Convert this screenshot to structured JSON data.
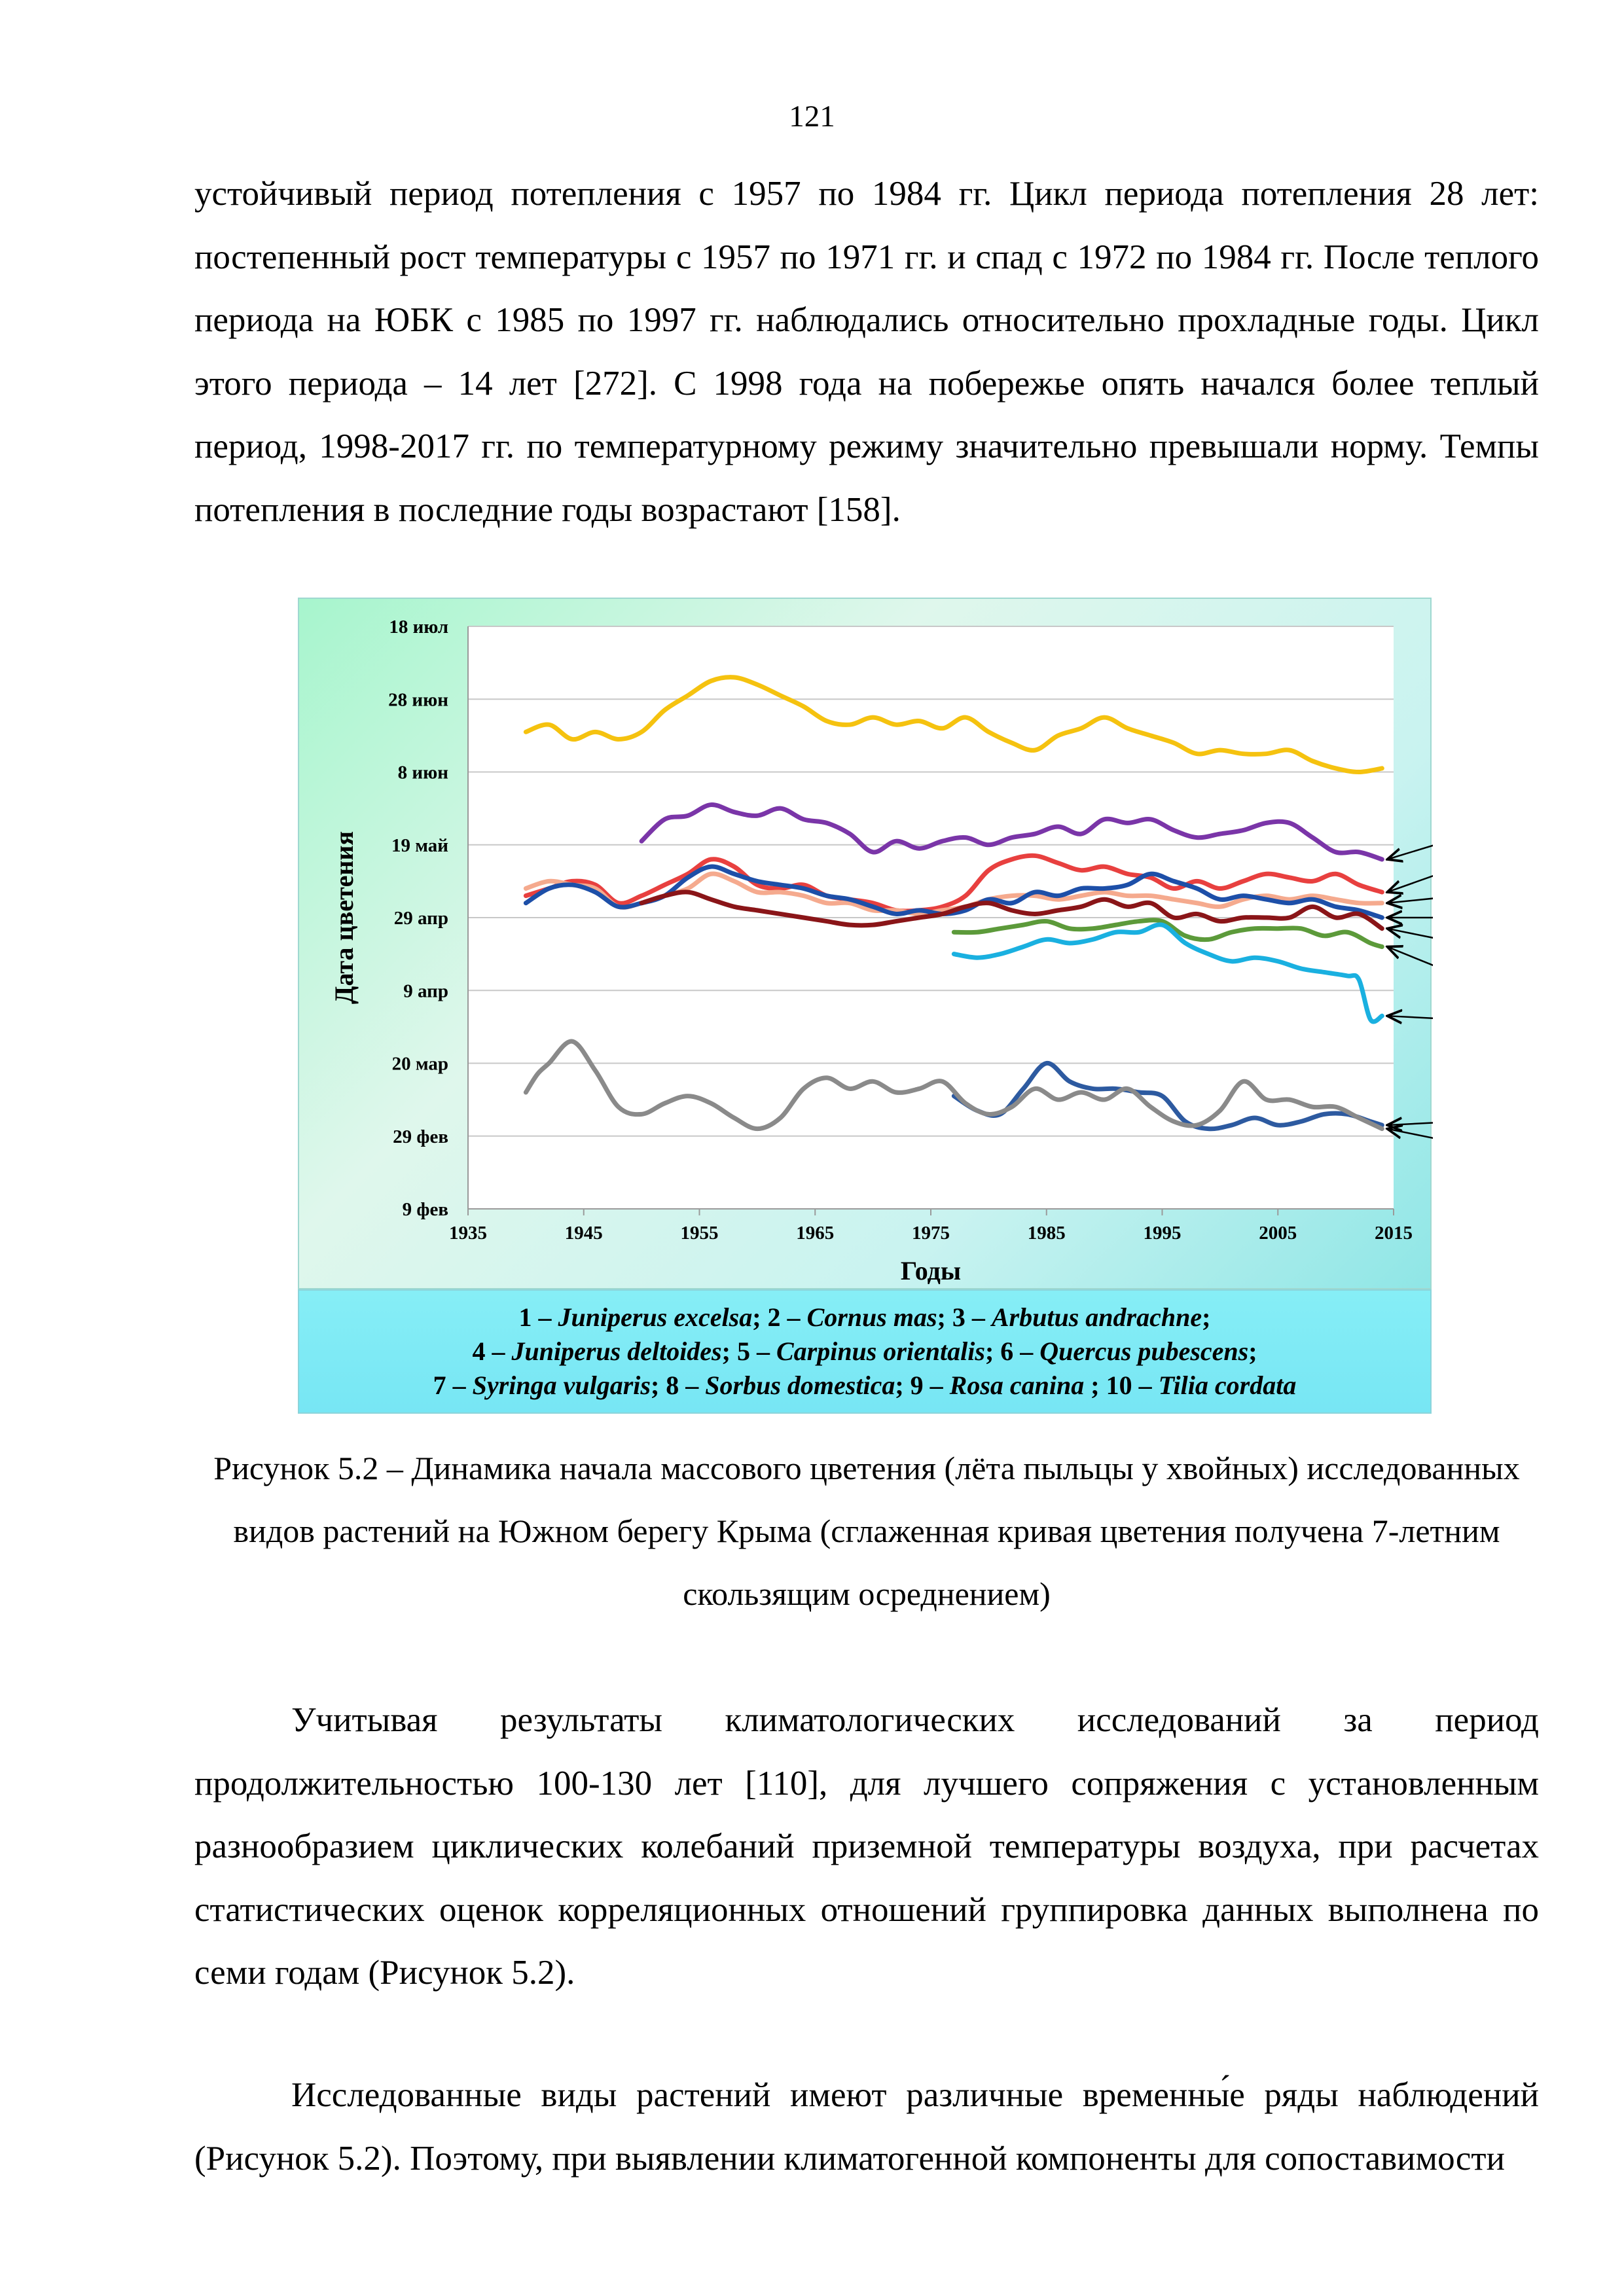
{
  "page_number": "121",
  "paragraph_top": "устойчивый период потепления с 1957 по 1984 гг. Цикл периода потепления 28 лет: постепенный рост температуры с 1957 по 1971 гг. и спад с 1972 по 1984 гг. После теплого периода на ЮБК с 1985 по 1997 гг. наблюдались относительно прохладные годы. Цикл этого периода – 14 лет [272]. С 1998 года на побережье опять начался более теплый период, 1998-2017 гг. по температурному режиму значительно превышали норму. Темпы потепления в последние годы возрастают [158].",
  "figure_caption": "Рисунок 5.2 – Динамика начала массового цветения (лёта пыльцы у хвойных) исследованных видов растений на Южном берегу Крыма (сглаженная кривая цветения получена 7-летним скользящим осреднением)",
  "paragraph_2": "Учитывая результаты климатологических исследований за период продолжительностью 100-130 лет [110], для лучшего сопряжения с установленным разнообразием циклических колебаний приземной температуры воздуха, при расчетах статистических оценок корреляционных отношений группировка данных выполнена по семи годам (Рисунок 5.2).",
  "paragraph_3": "Исследованные виды растений имеют различные временны́е ряды наблюдений (Рисунок 5.2). Поэтому, при выявлении климатогенной компоненты для сопоставимости",
  "legend": {
    "line1": [
      {
        "num": "1 – ",
        "name": "Juniperus excelsa"
      },
      {
        "num": "; 2 – ",
        "name": "Cornus mas"
      },
      {
        "num": "; 3 – ",
        "name": "Arbutus andrachne"
      },
      {
        "num": ";",
        "name": ""
      }
    ],
    "line2": [
      {
        "num": "4 – ",
        "name": "Juniperus deltoides"
      },
      {
        "num": "; 5 – ",
        "name": "Carpinus orientalis"
      },
      {
        "num": "; 6 – ",
        "name": "Quercus pubescens"
      },
      {
        "num": ";",
        "name": ""
      }
    ],
    "line3": [
      {
        "num": "7 – ",
        "name": "Syringa vulgaris"
      },
      {
        "num": "; 8 – ",
        "name": "Sorbus domestica"
      },
      {
        "num": "; 9 – ",
        "name": "Rosa canina"
      },
      {
        "num": " ; 10 – ",
        "name": "Tilia cordata"
      }
    ]
  },
  "chart_data": {
    "type": "line",
    "xlabel": "Годы",
    "ylabel": "Дата цветения",
    "xlim": [
      1935,
      2015
    ],
    "x_ticks": [
      1935,
      1945,
      1955,
      1965,
      1975,
      1985,
      1995,
      2005,
      2015
    ],
    "y_ticks": [
      "18 июл",
      "28 июн",
      "8 июн",
      "19 май",
      "29 апр",
      "9 апр",
      "20 мар",
      "29 фев",
      "9 фев"
    ],
    "y_unit": "days after 9 фев",
    "ylim": [
      0,
      160
    ],
    "y_tick_values": [
      160,
      140,
      120,
      100,
      80,
      60,
      40,
      20,
      0
    ],
    "grid": true,
    "series": [
      {
        "label": "10",
        "color": "#f5c20f",
        "x": [
          1940,
          1942,
          1944,
          1946,
          1948,
          1950,
          1952,
          1954,
          1956,
          1958,
          1960,
          1962,
          1964,
          1966,
          1968,
          1970,
          1972,
          1974,
          1976,
          1978,
          1980,
          1982,
          1984,
          1986,
          1988,
          1990,
          1992,
          1994,
          1996,
          1998,
          2000,
          2002,
          2004,
          2006,
          2008,
          2010,
          2012,
          2014
        ],
        "values": [
          131,
          133,
          129,
          131,
          129,
          131,
          137,
          141,
          145,
          146,
          144,
          141,
          138,
          134,
          133,
          135,
          133,
          134,
          132,
          135,
          131,
          128,
          126,
          130,
          132,
          135,
          132,
          130,
          128,
          125,
          126,
          125,
          125,
          126,
          123,
          121,
          120,
          121
        ]
      },
      {
        "label": "9",
        "color": "#7a35a8",
        "x": [
          1950,
          1952,
          1954,
          1956,
          1958,
          1960,
          1962,
          1964,
          1966,
          1968,
          1970,
          1972,
          1974,
          1976,
          1978,
          1980,
          1982,
          1984,
          1986,
          1988,
          1990,
          1992,
          1994,
          1996,
          1998,
          2000,
          2002,
          2004,
          2006,
          2008,
          2010,
          2012,
          2014
        ],
        "values": [
          101,
          107,
          108,
          111,
          109,
          108,
          110,
          107,
          106,
          103,
          98,
          101,
          99,
          101,
          102,
          100,
          102,
          103,
          105,
          103,
          107,
          106,
          107,
          104,
          102,
          103,
          104,
          106,
          106,
          102,
          98,
          98,
          96
        ]
      },
      {
        "label": "8",
        "color": "#e8403f",
        "x": [
          1940,
          1942,
          1944,
          1946,
          1948,
          1950,
          1952,
          1954,
          1956,
          1958,
          1960,
          1962,
          1964,
          1966,
          1968,
          1970,
          1972,
          1974,
          1976,
          1978,
          1980,
          1982,
          1984,
          1986,
          1988,
          1990,
          1992,
          1994,
          1996,
          1998,
          2000,
          2002,
          2004,
          2006,
          2008,
          2010,
          2012,
          2014
        ],
        "values": [
          86,
          88,
          90,
          89,
          84,
          86,
          89,
          92,
          96,
          94,
          89,
          88,
          89,
          86,
          85,
          84,
          82,
          82,
          83,
          86,
          93,
          96,
          97,
          95,
          93,
          94,
          92,
          91,
          88,
          90,
          88,
          90,
          92,
          91,
          90,
          92,
          89,
          87
        ]
      },
      {
        "label": "7",
        "color": "#f5aa8e",
        "x": [
          1940,
          1942,
          1944,
          1946,
          1948,
          1950,
          1952,
          1954,
          1956,
          1958,
          1960,
          1962,
          1964,
          1966,
          1968,
          1970,
          1972,
          1974,
          1976,
          1978,
          1980,
          1982,
          1984,
          1986,
          1988,
          1990,
          1992,
          1994,
          1996,
          1998,
          2000,
          2002,
          2004,
          2006,
          2008,
          2010,
          2012,
          2014
        ],
        "values": [
          88,
          90,
          89,
          88,
          83,
          84,
          86,
          88,
          92,
          90,
          87,
          87,
          86,
          84,
          84,
          82,
          82,
          81,
          82,
          83,
          85,
          86,
          86,
          85,
          86,
          87,
          86,
          86,
          85,
          84,
          83,
          85,
          86,
          85,
          86,
          85,
          84,
          84
        ]
      },
      {
        "label": "6",
        "color": "#1d4fa8",
        "x": [
          1940,
          1942,
          1944,
          1946,
          1948,
          1950,
          1952,
          1954,
          1956,
          1958,
          1960,
          1962,
          1964,
          1966,
          1968,
          1970,
          1972,
          1974,
          1976,
          1978,
          1980,
          1982,
          1984,
          1986,
          1988,
          1990,
          1992,
          1994,
          1996,
          1998,
          2000,
          2002,
          2004,
          2006,
          2008,
          2010,
          2012,
          2014
        ],
        "values": [
          84,
          88,
          89,
          87,
          83,
          84,
          86,
          91,
          94,
          92,
          90,
          89,
          88,
          86,
          85,
          83,
          81,
          82,
          81,
          82,
          85,
          84,
          87,
          86,
          88,
          88,
          89,
          92,
          90,
          88,
          85,
          86,
          85,
          84,
          85,
          83,
          82,
          80
        ]
      },
      {
        "label": "5",
        "color": "#8a1518",
        "x": [
          1950,
          1952,
          1954,
          1956,
          1958,
          1960,
          1962,
          1964,
          1966,
          1968,
          1970,
          1972,
          1974,
          1976,
          1978,
          1980,
          1982,
          1984,
          1986,
          1988,
          1990,
          1992,
          1994,
          1996,
          1998,
          2000,
          2002,
          2004,
          2006,
          2008,
          2010,
          2012,
          2014
        ],
        "values": [
          84,
          86,
          87,
          85,
          83,
          82,
          81,
          80,
          79,
          78,
          78,
          79,
          80,
          81,
          83,
          84,
          82,
          81,
          82,
          83,
          85,
          83,
          84,
          80,
          81,
          79,
          80,
          80,
          80,
          83,
          80,
          81,
          77
        ]
      },
      {
        "label": "4",
        "color": "#5c9a3a",
        "x": [
          1977,
          1979,
          1981,
          1983,
          1985,
          1987,
          1989,
          1991,
          1993,
          1995,
          1997,
          1999,
          2001,
          2003,
          2005,
          2007,
          2009,
          2011,
          2013,
          2014
        ],
        "values": [
          76,
          76,
          77,
          78,
          79,
          77,
          77,
          78,
          79,
          79,
          75,
          74,
          76,
          77,
          77,
          77,
          75,
          76,
          73,
          72
        ]
      },
      {
        "label": "3",
        "color": "#1ab0e0",
        "x": [
          1977,
          1979,
          1981,
          1983,
          1985,
          1987,
          1989,
          1991,
          1993,
          1995,
          1997,
          1999,
          2001,
          2003,
          2005,
          2007,
          2009,
          2011,
          2012,
          2013,
          2014
        ],
        "values": [
          70,
          69,
          70,
          72,
          74,
          73,
          74,
          76,
          76,
          78,
          73,
          70,
          68,
          69,
          68,
          66,
          65,
          64,
          63,
          52,
          53
        ]
      },
      {
        "label": "2",
        "color": "#2d5aa0",
        "x": [
          1977,
          1979,
          1981,
          1983,
          1985,
          1987,
          1989,
          1991,
          1993,
          1995,
          1997,
          1999,
          2001,
          2003,
          2005,
          2007,
          2009,
          2011,
          2013,
          2014
        ],
        "values": [
          31,
          27,
          26,
          33,
          40,
          35,
          33,
          33,
          32,
          31,
          24,
          22,
          23,
          25,
          23,
          24,
          26,
          26,
          24,
          23
        ]
      },
      {
        "label": "1",
        "color": "#8a8a8a",
        "x": [
          1940,
          1941,
          1942,
          1944,
          1946,
          1948,
          1950,
          1952,
          1954,
          1956,
          1958,
          1960,
          1962,
          1964,
          1966,
          1968,
          1970,
          1972,
          1974,
          1976,
          1978,
          1980,
          1982,
          1984,
          1986,
          1988,
          1990,
          1992,
          1994,
          1996,
          1998,
          2000,
          2002,
          2004,
          2006,
          2008,
          2010,
          2012,
          2014
        ],
        "values": [
          32,
          37,
          40,
          46,
          38,
          28,
          26,
          29,
          31,
          29,
          25,
          22,
          25,
          33,
          36,
          33,
          35,
          32,
          33,
          35,
          29,
          26,
          28,
          33,
          30,
          32,
          30,
          33,
          28,
          24,
          23,
          27,
          35,
          30,
          30,
          28,
          28,
          25,
          22
        ]
      }
    ]
  }
}
